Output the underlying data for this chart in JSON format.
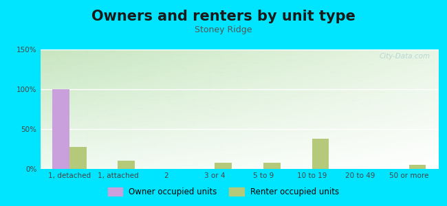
{
  "title": "Owners and renters by unit type",
  "subtitle": "Stoney Ridge",
  "categories": [
    "1, detached",
    "1, attached",
    "2",
    "3 or 4",
    "5 to 9",
    "10 to 19",
    "20 to 49",
    "50 or more"
  ],
  "owner_values": [
    100,
    0,
    0,
    0,
    0,
    0,
    0,
    0
  ],
  "renter_values": [
    28,
    10,
    0,
    8,
    8,
    38,
    0,
    5
  ],
  "ylim": [
    0,
    150
  ],
  "yticks": [
    0,
    50,
    100,
    150
  ],
  "ytick_labels": [
    "0%",
    "50%",
    "100%",
    "150%"
  ],
  "owner_color": "#c9a0dc",
  "renter_color": "#b5c97a",
  "background_outer": "#00e5ff",
  "bar_width": 0.35,
  "legend_owner": "Owner occupied units",
  "legend_renter": "Renter occupied units",
  "title_fontsize": 15,
  "subtitle_fontsize": 9,
  "tick_fontsize": 7.5,
  "watermark": "City-Data.com"
}
